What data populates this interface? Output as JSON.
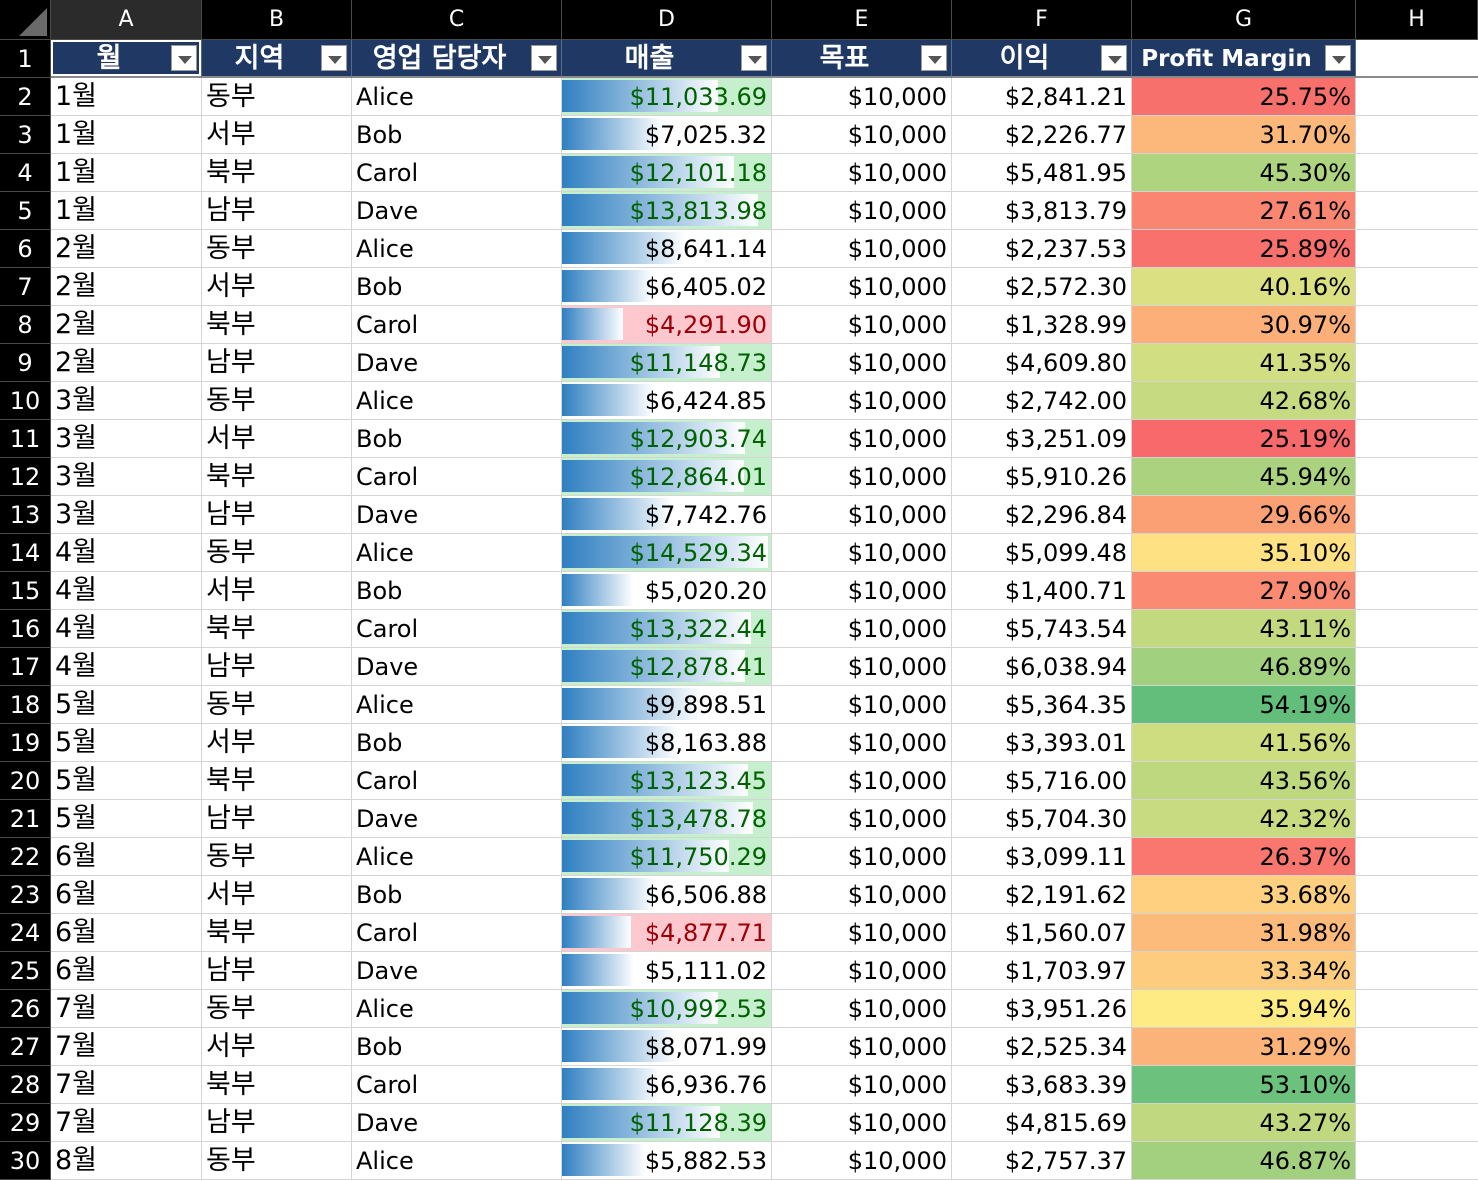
{
  "colors": {
    "header_fill": "#1f3864",
    "bar_start": "#2f7fc1",
    "bar_end": "#ffffff",
    "sales_high_fill": "#c6efce",
    "sales_high_text": "#006100",
    "sales_low_fill": "#ffc7ce",
    "sales_low_text": "#9c0006"
  },
  "sales_bar_range": [
    0,
    14529.34
  ],
  "margin_scale": {
    "min": 25.19,
    "mid": 35.94,
    "max": 54.19
  },
  "column_letters": [
    "A",
    "B",
    "C",
    "D",
    "E",
    "F",
    "G",
    "H"
  ],
  "headers": [
    "월",
    "지역",
    "영업 담당자",
    "매출",
    "목표",
    "이익",
    "Profit Margin"
  ],
  "rows": [
    {
      "n": "2",
      "month": "1월",
      "region": "동부",
      "rep": "Alice",
      "sales": 11033.69,
      "sales_text": "$11,033.69",
      "target": "$10,000",
      "profit": "$2,841.21",
      "margin": 25.75,
      "margin_text": "25.75%"
    },
    {
      "n": "3",
      "month": "1월",
      "region": "서부",
      "rep": "Bob",
      "sales": 7025.32,
      "sales_text": "$7,025.32",
      "target": "$10,000",
      "profit": "$2,226.77",
      "margin": 31.7,
      "margin_text": "31.70%"
    },
    {
      "n": "4",
      "month": "1월",
      "region": "북부",
      "rep": "Carol",
      "sales": 12101.18,
      "sales_text": "$12,101.18",
      "target": "$10,000",
      "profit": "$5,481.95",
      "margin": 45.3,
      "margin_text": "45.30%"
    },
    {
      "n": "5",
      "month": "1월",
      "region": "남부",
      "rep": "Dave",
      "sales": 13813.98,
      "sales_text": "$13,813.98",
      "target": "$10,000",
      "profit": "$3,813.79",
      "margin": 27.61,
      "margin_text": "27.61%"
    },
    {
      "n": "6",
      "month": "2월",
      "region": "동부",
      "rep": "Alice",
      "sales": 8641.14,
      "sales_text": "$8,641.14",
      "target": "$10,000",
      "profit": "$2,237.53",
      "margin": 25.89,
      "margin_text": "25.89%"
    },
    {
      "n": "7",
      "month": "2월",
      "region": "서부",
      "rep": "Bob",
      "sales": 6405.02,
      "sales_text": "$6,405.02",
      "target": "$10,000",
      "profit": "$2,572.30",
      "margin": 40.16,
      "margin_text": "40.16%"
    },
    {
      "n": "8",
      "month": "2월",
      "region": "북부",
      "rep": "Carol",
      "sales": 4291.9,
      "sales_text": "$4,291.90",
      "target": "$10,000",
      "profit": "$1,328.99",
      "margin": 30.97,
      "margin_text": "30.97%"
    },
    {
      "n": "9",
      "month": "2월",
      "region": "남부",
      "rep": "Dave",
      "sales": 11148.73,
      "sales_text": "$11,148.73",
      "target": "$10,000",
      "profit": "$4,609.80",
      "margin": 41.35,
      "margin_text": "41.35%"
    },
    {
      "n": "10",
      "month": "3월",
      "region": "동부",
      "rep": "Alice",
      "sales": 6424.85,
      "sales_text": "$6,424.85",
      "target": "$10,000",
      "profit": "$2,742.00",
      "margin": 42.68,
      "margin_text": "42.68%"
    },
    {
      "n": "11",
      "month": "3월",
      "region": "서부",
      "rep": "Bob",
      "sales": 12903.74,
      "sales_text": "$12,903.74",
      "target": "$10,000",
      "profit": "$3,251.09",
      "margin": 25.19,
      "margin_text": "25.19%"
    },
    {
      "n": "12",
      "month": "3월",
      "region": "북부",
      "rep": "Carol",
      "sales": 12864.01,
      "sales_text": "$12,864.01",
      "target": "$10,000",
      "profit": "$5,910.26",
      "margin": 45.94,
      "margin_text": "45.94%"
    },
    {
      "n": "13",
      "month": "3월",
      "region": "남부",
      "rep": "Dave",
      "sales": 7742.76,
      "sales_text": "$7,742.76",
      "target": "$10,000",
      "profit": "$2,296.84",
      "margin": 29.66,
      "margin_text": "29.66%"
    },
    {
      "n": "14",
      "month": "4월",
      "region": "동부",
      "rep": "Alice",
      "sales": 14529.34,
      "sales_text": "$14,529.34",
      "target": "$10,000",
      "profit": "$5,099.48",
      "margin": 35.1,
      "margin_text": "35.10%"
    },
    {
      "n": "15",
      "month": "4월",
      "region": "서부",
      "rep": "Bob",
      "sales": 5020.2,
      "sales_text": "$5,020.20",
      "target": "$10,000",
      "profit": "$1,400.71",
      "margin": 27.9,
      "margin_text": "27.90%"
    },
    {
      "n": "16",
      "month": "4월",
      "region": "북부",
      "rep": "Carol",
      "sales": 13322.44,
      "sales_text": "$13,322.44",
      "target": "$10,000",
      "profit": "$5,743.54",
      "margin": 43.11,
      "margin_text": "43.11%"
    },
    {
      "n": "17",
      "month": "4월",
      "region": "남부",
      "rep": "Dave",
      "sales": 12878.41,
      "sales_text": "$12,878.41",
      "target": "$10,000",
      "profit": "$6,038.94",
      "margin": 46.89,
      "margin_text": "46.89%"
    },
    {
      "n": "18",
      "month": "5월",
      "region": "동부",
      "rep": "Alice",
      "sales": 9898.51,
      "sales_text": "$9,898.51",
      "target": "$10,000",
      "profit": "$5,364.35",
      "margin": 54.19,
      "margin_text": "54.19%"
    },
    {
      "n": "19",
      "month": "5월",
      "region": "서부",
      "rep": "Bob",
      "sales": 8163.88,
      "sales_text": "$8,163.88",
      "target": "$10,000",
      "profit": "$3,393.01",
      "margin": 41.56,
      "margin_text": "41.56%"
    },
    {
      "n": "20",
      "month": "5월",
      "region": "북부",
      "rep": "Carol",
      "sales": 13123.45,
      "sales_text": "$13,123.45",
      "target": "$10,000",
      "profit": "$5,716.00",
      "margin": 43.56,
      "margin_text": "43.56%"
    },
    {
      "n": "21",
      "month": "5월",
      "region": "남부",
      "rep": "Dave",
      "sales": 13478.78,
      "sales_text": "$13,478.78",
      "target": "$10,000",
      "profit": "$5,704.30",
      "margin": 42.32,
      "margin_text": "42.32%"
    },
    {
      "n": "22",
      "month": "6월",
      "region": "동부",
      "rep": "Alice",
      "sales": 11750.29,
      "sales_text": "$11,750.29",
      "target": "$10,000",
      "profit": "$3,099.11",
      "margin": 26.37,
      "margin_text": "26.37%"
    },
    {
      "n": "23",
      "month": "6월",
      "region": "서부",
      "rep": "Bob",
      "sales": 6506.88,
      "sales_text": "$6,506.88",
      "target": "$10,000",
      "profit": "$2,191.62",
      "margin": 33.68,
      "margin_text": "33.68%"
    },
    {
      "n": "24",
      "month": "6월",
      "region": "북부",
      "rep": "Carol",
      "sales": 4877.71,
      "sales_text": "$4,877.71",
      "target": "$10,000",
      "profit": "$1,560.07",
      "margin": 31.98,
      "margin_text": "31.98%"
    },
    {
      "n": "25",
      "month": "6월",
      "region": "남부",
      "rep": "Dave",
      "sales": 5111.02,
      "sales_text": "$5,111.02",
      "target": "$10,000",
      "profit": "$1,703.97",
      "margin": 33.34,
      "margin_text": "33.34%"
    },
    {
      "n": "26",
      "month": "7월",
      "region": "동부",
      "rep": "Alice",
      "sales": 10992.53,
      "sales_text": "$10,992.53",
      "target": "$10,000",
      "profit": "$3,951.26",
      "margin": 35.94,
      "margin_text": "35.94%"
    },
    {
      "n": "27",
      "month": "7월",
      "region": "서부",
      "rep": "Bob",
      "sales": 8071.99,
      "sales_text": "$8,071.99",
      "target": "$10,000",
      "profit": "$2,525.34",
      "margin": 31.29,
      "margin_text": "31.29%"
    },
    {
      "n": "28",
      "month": "7월",
      "region": "북부",
      "rep": "Carol",
      "sales": 6936.76,
      "sales_text": "$6,936.76",
      "target": "$10,000",
      "profit": "$3,683.39",
      "margin": 53.1,
      "margin_text": "53.10%"
    },
    {
      "n": "29",
      "month": "7월",
      "region": "남부",
      "rep": "Dave",
      "sales": 11128.39,
      "sales_text": "$11,128.39",
      "target": "$10,000",
      "profit": "$4,815.69",
      "margin": 43.27,
      "margin_text": "43.27%"
    },
    {
      "n": "30",
      "month": "8월",
      "region": "동부",
      "rep": "Alice",
      "sales": 5882.53,
      "sales_text": "$5,882.53",
      "target": "$10,000",
      "profit": "$2,757.37",
      "margin": 46.87,
      "margin_text": "46.87%"
    }
  ]
}
